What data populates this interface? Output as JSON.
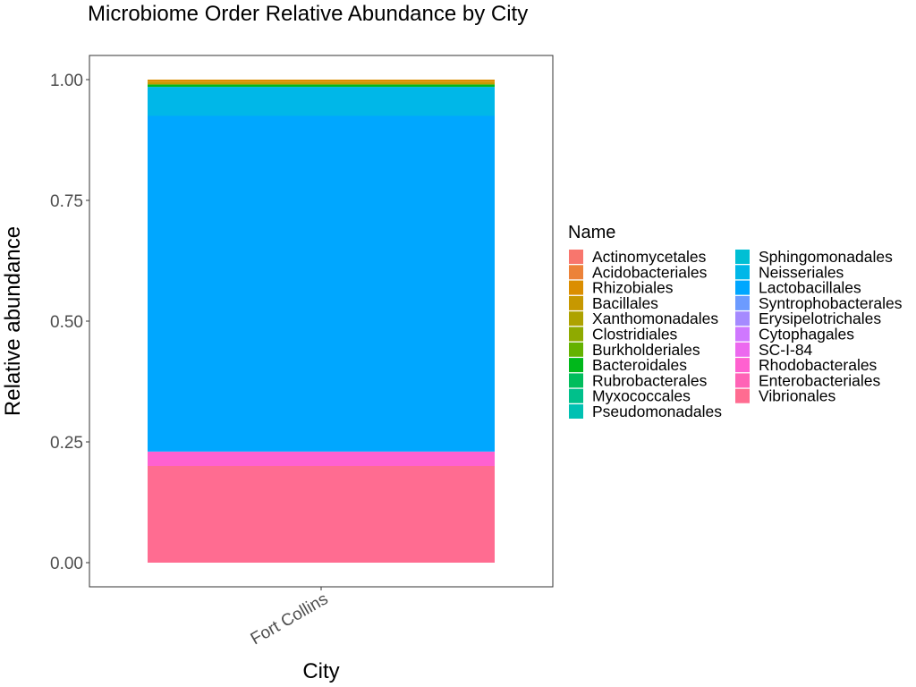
{
  "chart_data": {
    "type": "bar",
    "stacked": true,
    "title": "Microbiome Order Relative Abundance by City",
    "xlabel": "City",
    "ylabel": "Relative abundance",
    "categories": [
      "Fort Collins"
    ],
    "ylim": [
      0,
      1
    ],
    "yticks": [
      0.0,
      0.25,
      0.5,
      0.75,
      1.0
    ],
    "ytick_labels": [
      "0.00",
      "0.25",
      "0.50",
      "0.75",
      "1.00"
    ],
    "grid": false,
    "legend": {
      "title": "Name",
      "placement": "right",
      "columns": 2
    },
    "series": [
      {
        "name": "Actinomycetales",
        "color": "#F8766D",
        "values": [
          0.0
        ]
      },
      {
        "name": "Acidobacteriales",
        "color": "#EC8239",
        "values": [
          0.0
        ]
      },
      {
        "name": "Rhizobiales",
        "color": "#DB8E00",
        "values": [
          0.005
        ]
      },
      {
        "name": "Bacillales",
        "color": "#C79800",
        "values": [
          0.005
        ]
      },
      {
        "name": "Xanthomonadales",
        "color": "#AEA200",
        "values": [
          0.0
        ]
      },
      {
        "name": "Clostridiales",
        "color": "#8FAA00",
        "values": [
          0.0
        ]
      },
      {
        "name": "Burkholderiales",
        "color": "#64B200",
        "values": [
          0.0
        ]
      },
      {
        "name": "Bacteroidales",
        "color": "#00B81B",
        "values": [
          0.005
        ]
      },
      {
        "name": "Rubrobacterales",
        "color": "#00BD5C",
        "values": [
          0.0
        ]
      },
      {
        "name": "Myxococcales",
        "color": "#00C08B",
        "values": [
          0.0
        ]
      },
      {
        "name": "Pseudomonadales",
        "color": "#00C1B2",
        "values": [
          0.0
        ]
      },
      {
        "name": "Sphingomonadales",
        "color": "#00BFD4",
        "values": [
          0.0
        ]
      },
      {
        "name": "Neisseriales",
        "color": "#00B7E8",
        "values": [
          0.06
        ]
      },
      {
        "name": "Lactobacillales",
        "color": "#00A7FF",
        "values": [
          0.695
        ]
      },
      {
        "name": "Syntrophobacterales",
        "color": "#6C9BFF",
        "values": [
          0.0
        ]
      },
      {
        "name": "Erysipelotrichales",
        "color": "#A58AFF",
        "values": [
          0.0
        ]
      },
      {
        "name": "Cytophagales",
        "color": "#CF78FF",
        "values": [
          0.0
        ]
      },
      {
        "name": "SC-I-84",
        "color": "#EC69EF",
        "values": [
          0.0
        ]
      },
      {
        "name": "Rhodobacterales",
        "color": "#FF61D0",
        "values": [
          0.03
        ]
      },
      {
        "name": "Enterobacteriales",
        "color": "#FF63B6",
        "values": [
          0.0
        ]
      },
      {
        "name": "Vibrionales",
        "color": "#FF6C91",
        "values": [
          0.2
        ]
      }
    ]
  }
}
